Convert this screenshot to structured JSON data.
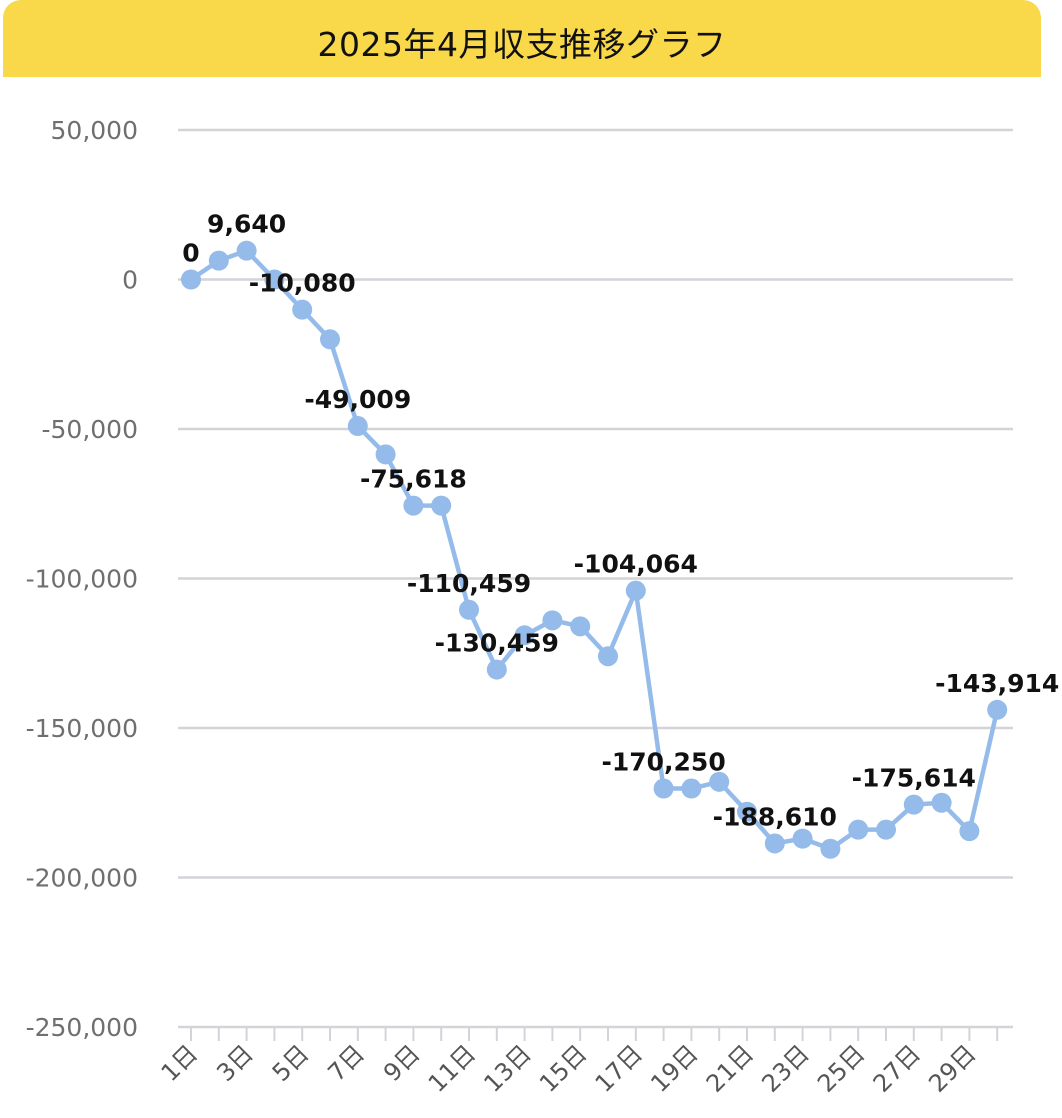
{
  "chart_data": {
    "type": "line",
    "title": "2025年4月収支推移グラフ",
    "xlabel": "",
    "ylabel": "",
    "ylim": [
      -250000,
      50000
    ],
    "yticks": [
      50000,
      0,
      -50000,
      -100000,
      -150000,
      -200000,
      -250000
    ],
    "ytick_labels": [
      "50,000",
      "0",
      "-50,000",
      "-100,000",
      "-150,000",
      "-200,000",
      "-250,000"
    ],
    "categories": [
      "1日",
      "2日",
      "3日",
      "4日",
      "5日",
      "6日",
      "7日",
      "8日",
      "9日",
      "10日",
      "11日",
      "12日",
      "13日",
      "14日",
      "15日",
      "16日",
      "17日",
      "18日",
      "19日",
      "20日",
      "21日",
      "22日",
      "23日",
      "24日",
      "25日",
      "26日",
      "27日",
      "28日",
      "29日",
      "30日"
    ],
    "xtick_labels": [
      "1日",
      "3日",
      "5日",
      "7日",
      "9日",
      "11日",
      "13日",
      "15日",
      "17日",
      "19日",
      "21日",
      "23日",
      "25日",
      "27日",
      "29日"
    ],
    "series": [
      {
        "values": [
          0,
          6300,
          9640,
          0,
          -10080,
          -20000,
          -49009,
          -58500,
          -75618,
          -75618,
          -110459,
          -130459,
          -119000,
          -114000,
          -116000,
          -126000,
          -104064,
          -170250,
          -170250,
          -168000,
          -178000,
          -188610,
          -187000,
          -190400,
          -184000,
          -184000,
          -175614,
          -175000,
          -184500,
          -143914
        ],
        "color": "#94bbe9"
      }
    ],
    "data_labels": [
      {
        "index": 0,
        "text": "0"
      },
      {
        "index": 2,
        "text": "9,640"
      },
      {
        "index": 4,
        "text": "-10,080"
      },
      {
        "index": 6,
        "text": "-49,009"
      },
      {
        "index": 8,
        "text": "-75,618"
      },
      {
        "index": 10,
        "text": "-110,459"
      },
      {
        "index": 11,
        "text": "-130,459"
      },
      {
        "index": 16,
        "text": "-104,064"
      },
      {
        "index": 17,
        "text": "-170,250"
      },
      {
        "index": 21,
        "text": "-188,610"
      },
      {
        "index": 26,
        "text": "-175,614"
      },
      {
        "index": 29,
        "text": "-143,914"
      }
    ],
    "grid": true,
    "legend": "none",
    "header_color": "#f9d84a",
    "grid_color": "#d4d4d8"
  }
}
